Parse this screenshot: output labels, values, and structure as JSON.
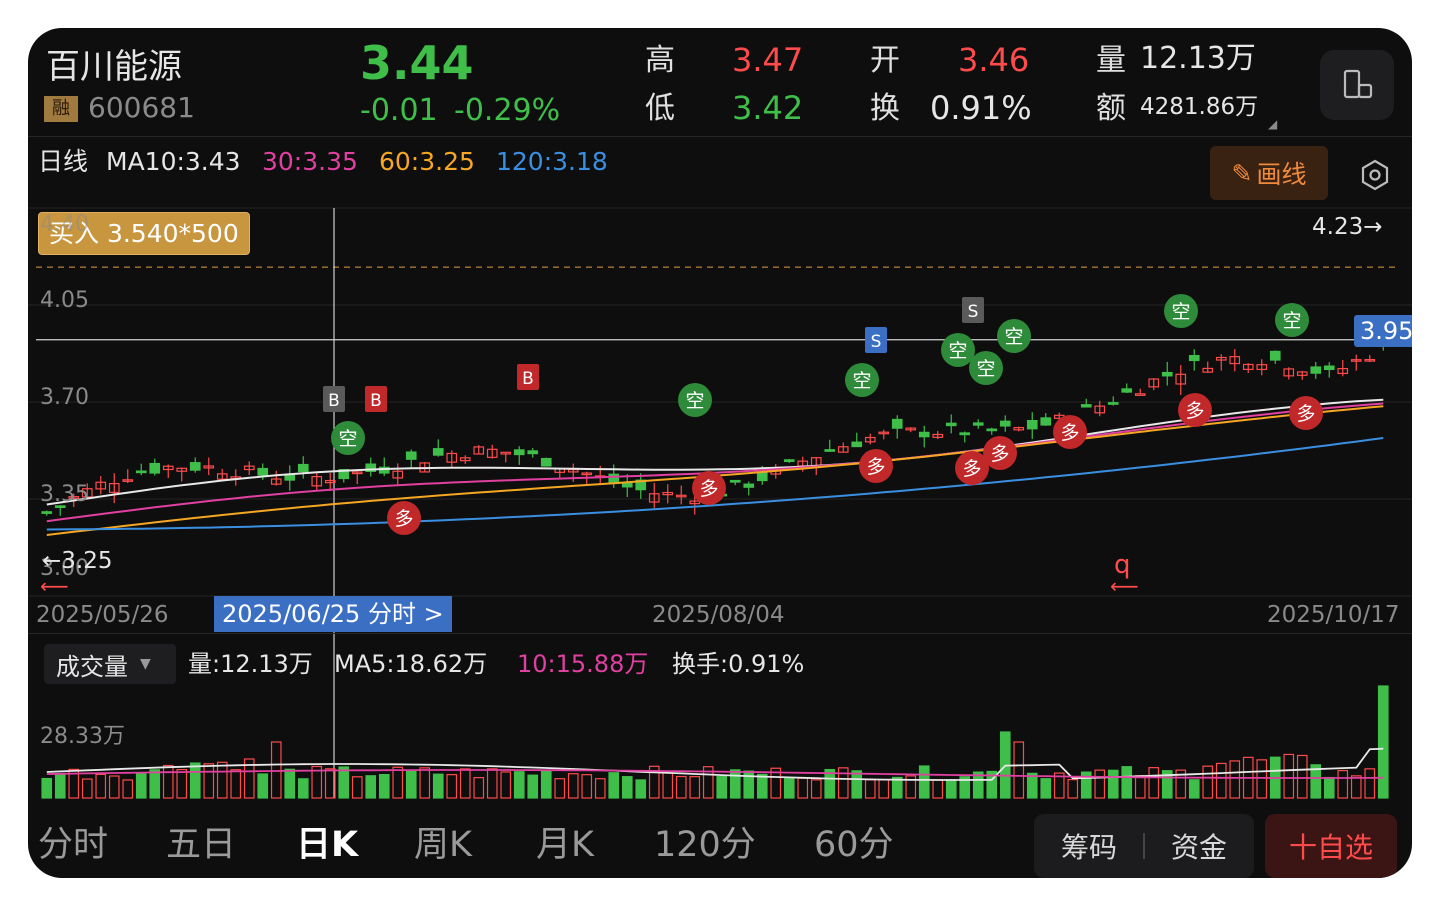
{
  "stock": {
    "name": "百川能源",
    "margin_badge": "融",
    "code": "600681"
  },
  "quote": {
    "price": "3.44",
    "change": "-0.01",
    "change_pct": "-0.29%",
    "high_label": "高",
    "high": "3.47",
    "low_label": "低",
    "low": "3.42",
    "open_label": "开",
    "open": "3.46",
    "turnover_label": "换",
    "turnover": "0.91%",
    "volume_label": "量",
    "volume": "12.13万",
    "amount_label": "额",
    "amount": "4281.86万"
  },
  "ma_bar": {
    "period": "日线",
    "ma10": "MA10:3.43",
    "ma30": "30:3.35",
    "ma60": "60:3.25",
    "ma120": "120:3.18",
    "draw_button": "画线"
  },
  "order_tag": "买入 3.540*500",
  "price_axis": {
    "labels": [
      "4.40",
      "4.05",
      "3.70",
      "3.35",
      "3.00"
    ]
  },
  "markers": {
    "max_label": "4.23→",
    "min_label": "←3.25",
    "current_price": "3.95"
  },
  "date_axis": {
    "start": "2025/05/26",
    "mid": "2025/08/04",
    "end": "2025/10/17",
    "crosshair": "2025/06/25 分时 >"
  },
  "volume_panel": {
    "selector": "成交量",
    "vol": "量:12.13万",
    "ma5": "MA5:18.62万",
    "ma10": "10:15.88万",
    "turnover": "换手:0.91%",
    "axis_max": "28.33万"
  },
  "tabs": [
    "分时",
    "五日",
    "日K",
    "周K",
    "月K",
    "120分",
    "60分"
  ],
  "active_tab": "日K",
  "buttons": {
    "chips": "筹码",
    "funds": "资金",
    "watchlist": "十自选"
  },
  "signal_labels": {
    "buy": "B",
    "sell": "S",
    "long": "多",
    "short": "空"
  },
  "colors": {
    "up": "#ff4b4b",
    "down": "#3fbf4a",
    "ma10": "#e8e8e8",
    "ma30": "#e040a0",
    "ma60": "#f5a623",
    "ma120": "#3a8fe0",
    "accent": "#3a6fc4"
  },
  "chart_data": {
    "type": "candlestick",
    "x_range": [
      "2025/05/26",
      "2025/10/17"
    ],
    "y_range": [
      3.0,
      4.4
    ],
    "ma_latest": {
      "MA10": 3.43,
      "MA30": 3.35,
      "MA60": 3.25,
      "MA120": 3.18
    },
    "high_marker": 4.23,
    "low_marker": 3.25,
    "crosshair_price": 3.95,
    "volume_ma": {
      "MA5": "18.62万",
      "MA10": "15.88万"
    },
    "volume_max_label": "28.33万"
  }
}
